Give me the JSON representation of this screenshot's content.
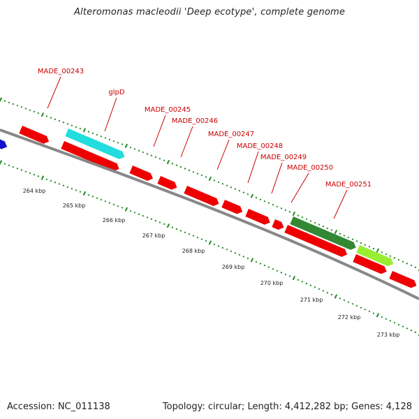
{
  "title": "Alteromonas macleodii 'Deep ecotype', complete genome",
  "footer": {
    "accession": "Accession: NC_011138",
    "summary": "Topology: circular; Length: 4,412,282 bp; Genes: 4,128"
  },
  "colors": {
    "gene_default": "#ee0000",
    "gene_cyan": "#22dddd",
    "gene_blue": "#1111cc",
    "gene_lightgreen": "#99ee33",
    "gene_darkgreen": "#338833",
    "backbone": "#888888",
    "tick": "#228822",
    "label": "#cc0000"
  },
  "ticks": [
    {
      "label": "264 kbp"
    },
    {
      "label": "265 kbp"
    },
    {
      "label": "266 kbp"
    },
    {
      "label": "267 kbp"
    },
    {
      "label": "268 kbp"
    },
    {
      "label": "269 kbp"
    },
    {
      "label": "270 kbp"
    },
    {
      "label": "271 kbp"
    },
    {
      "label": "272 kbp"
    },
    {
      "label": "273 kbp"
    }
  ],
  "gene_labels": [
    {
      "name": "MADE_00243"
    },
    {
      "name": "glpD"
    },
    {
      "name": "MADE_00245"
    },
    {
      "name": "MADE_00246"
    },
    {
      "name": "MADE_00247"
    },
    {
      "name": "MADE_00248"
    },
    {
      "name": "MADE_00249"
    },
    {
      "name": "MADE_00250"
    },
    {
      "name": "MADE_00251"
    }
  ]
}
